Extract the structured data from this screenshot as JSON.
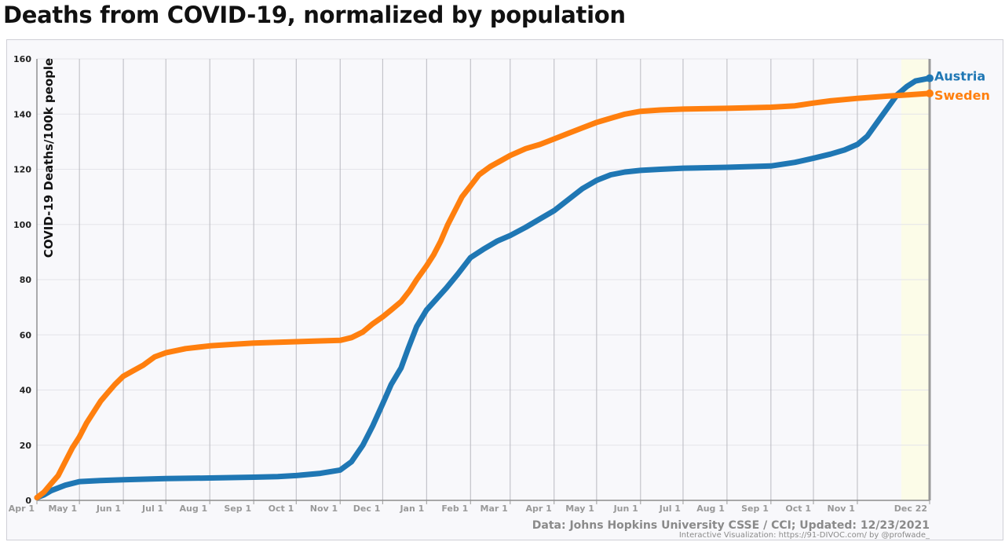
{
  "title": "Deaths from COVID-19, normalized by population",
  "chart_data": {
    "type": "line",
    "title": "Deaths from COVID-19, normalized by population",
    "ylabel": "COVID-19 Deaths/100k people",
    "xlabel": "",
    "ylim": [
      0,
      160
    ],
    "yticks": [
      "0",
      "20",
      "40",
      "60",
      "80",
      "100",
      "120",
      "140",
      "160"
    ],
    "categories": [
      "Apr 1",
      "May 1",
      "Jun 1",
      "Jul 1",
      "Aug 1",
      "Sep 1",
      "Oct 1",
      "Nov 1",
      "Dec 1",
      "Jan 1",
      "Feb 1",
      "Mar 1",
      "Apr 1",
      "May 1",
      "Jun 1",
      "Jul 1",
      "Aug 1",
      "Sep 1",
      "Oct 1",
      "Nov 1",
      "Dec 22"
    ],
    "x": [
      0,
      30,
      61,
      91,
      122,
      153,
      183,
      214,
      244,
      275,
      306,
      334,
      365,
      395,
      426,
      456,
      487,
      518,
      548,
      579,
      630
    ],
    "series": [
      {
        "name": "Austria",
        "color": "#1f77b4",
        "points": [
          [
            0,
            1
          ],
          [
            5,
            2
          ],
          [
            10,
            3.5
          ],
          [
            20,
            5.5
          ],
          [
            30,
            6.8
          ],
          [
            45,
            7.2
          ],
          [
            61,
            7.5
          ],
          [
            91,
            7.9
          ],
          [
            122,
            8.1
          ],
          [
            153,
            8.4
          ],
          [
            170,
            8.6
          ],
          [
            183,
            9
          ],
          [
            200,
            9.8
          ],
          [
            214,
            11
          ],
          [
            222,
            14
          ],
          [
            230,
            20
          ],
          [
            237,
            27
          ],
          [
            244,
            35
          ],
          [
            250,
            42
          ],
          [
            257,
            48
          ],
          [
            262,
            55
          ],
          [
            268,
            63
          ],
          [
            275,
            69
          ],
          [
            282,
            73
          ],
          [
            289,
            77
          ],
          [
            297,
            82
          ],
          [
            306,
            88
          ],
          [
            315,
            91
          ],
          [
            325,
            94
          ],
          [
            334,
            96
          ],
          [
            345,
            99
          ],
          [
            355,
            102
          ],
          [
            365,
            105
          ],
          [
            375,
            109
          ],
          [
            385,
            113
          ],
          [
            395,
            116
          ],
          [
            405,
            118
          ],
          [
            415,
            119
          ],
          [
            426,
            119.6
          ],
          [
            440,
            120
          ],
          [
            456,
            120.4
          ],
          [
            487,
            120.7
          ],
          [
            518,
            121.2
          ],
          [
            535,
            122.5
          ],
          [
            548,
            124
          ],
          [
            560,
            125.5
          ],
          [
            570,
            127
          ],
          [
            579,
            129
          ],
          [
            586,
            132
          ],
          [
            593,
            137
          ],
          [
            600,
            142
          ],
          [
            607,
            147
          ],
          [
            614,
            150
          ],
          [
            620,
            152
          ],
          [
            630,
            153
          ]
        ]
      },
      {
        "name": "Sweden",
        "color": "#ff7f0e",
        "points": [
          [
            0,
            1
          ],
          [
            5,
            3
          ],
          [
            10,
            6
          ],
          [
            15,
            9
          ],
          [
            20,
            14
          ],
          [
            25,
            19
          ],
          [
            30,
            23
          ],
          [
            35,
            28
          ],
          [
            40,
            32
          ],
          [
            45,
            36
          ],
          [
            50,
            39
          ],
          [
            55,
            42
          ],
          [
            61,
            45
          ],
          [
            68,
            47
          ],
          [
            75,
            49
          ],
          [
            83,
            52
          ],
          [
            91,
            53.5
          ],
          [
            105,
            55
          ],
          [
            122,
            56
          ],
          [
            137,
            56.5
          ],
          [
            153,
            57
          ],
          [
            183,
            57.5
          ],
          [
            200,
            57.8
          ],
          [
            214,
            58
          ],
          [
            222,
            59
          ],
          [
            230,
            61
          ],
          [
            237,
            64
          ],
          [
            244,
            66.5
          ],
          [
            250,
            69
          ],
          [
            257,
            72
          ],
          [
            263,
            76
          ],
          [
            268,
            80
          ],
          [
            275,
            85
          ],
          [
            280,
            89
          ],
          [
            285,
            94
          ],
          [
            290,
            100
          ],
          [
            296,
            106
          ],
          [
            300,
            110
          ],
          [
            306,
            114
          ],
          [
            312,
            118
          ],
          [
            320,
            121
          ],
          [
            327,
            123
          ],
          [
            334,
            125
          ],
          [
            345,
            127.5
          ],
          [
            355,
            129
          ],
          [
            365,
            131
          ],
          [
            375,
            133
          ],
          [
            385,
            135
          ],
          [
            395,
            137
          ],
          [
            405,
            138.5
          ],
          [
            415,
            140
          ],
          [
            426,
            141
          ],
          [
            440,
            141.5
          ],
          [
            456,
            141.8
          ],
          [
            487,
            142.1
          ],
          [
            518,
            142.5
          ],
          [
            535,
            143
          ],
          [
            548,
            144
          ],
          [
            560,
            144.8
          ],
          [
            579,
            145.7
          ],
          [
            600,
            146.5
          ],
          [
            615,
            147
          ],
          [
            630,
            147.5
          ]
        ]
      }
    ],
    "highlight_region": {
      "from": 610,
      "to": 630
    },
    "source_text": "Data: Johns Hopkins University CSSE / CCI; Updated: 12/23/2021",
    "credit_text": "Interactive Visualization: https://91-DIVOC.com/ by @profwade_"
  }
}
